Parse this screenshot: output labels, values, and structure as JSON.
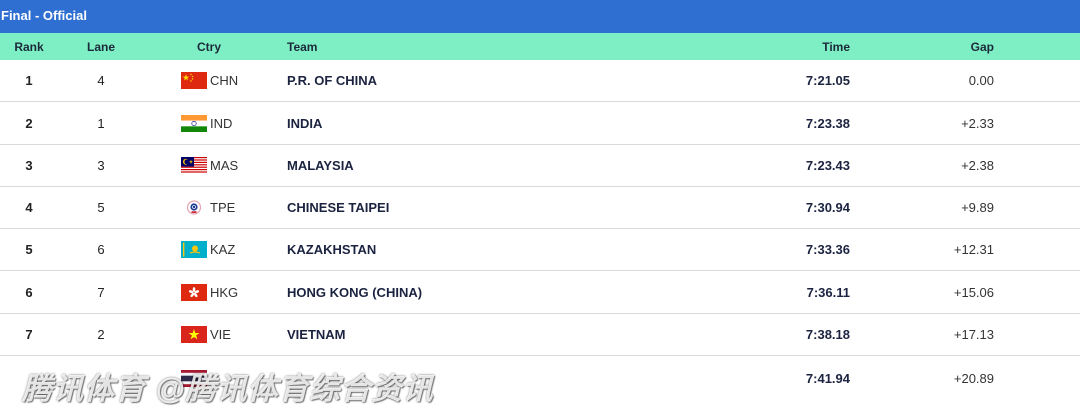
{
  "title": "Final - Official",
  "headers": {
    "rank": "Rank",
    "lane": "Lane",
    "ctry": "Ctry",
    "team": "Team",
    "time": "Time",
    "gap": "Gap"
  },
  "rows": [
    {
      "rank": "1",
      "lane": "4",
      "code": "CHN",
      "team": "P.R. OF CHINA",
      "time": "7:21.05",
      "gap": "0.00"
    },
    {
      "rank": "2",
      "lane": "1",
      "code": "IND",
      "team": "INDIA",
      "time": "7:23.38",
      "gap": "+2.33"
    },
    {
      "rank": "3",
      "lane": "3",
      "code": "MAS",
      "team": "MALAYSIA",
      "time": "7:23.43",
      "gap": "+2.38"
    },
    {
      "rank": "4",
      "lane": "5",
      "code": "TPE",
      "team": "CHINESE TAIPEI",
      "time": "7:30.94",
      "gap": "+9.89"
    },
    {
      "rank": "5",
      "lane": "6",
      "code": "KAZ",
      "team": "KAZAKHSTAN",
      "time": "7:33.36",
      "gap": "+12.31"
    },
    {
      "rank": "6",
      "lane": "7",
      "code": "HKG",
      "team": "HONG KONG (CHINA)",
      "time": "7:36.11",
      "gap": "+15.06"
    },
    {
      "rank": "7",
      "lane": "2",
      "code": "VIE",
      "team": "VIETNAM",
      "time": "7:38.18",
      "gap": "+17.13"
    },
    {
      "rank": "",
      "lane": "",
      "code": "",
      "team": "",
      "time": "7:41.94",
      "gap": "+20.89"
    }
  ],
  "watermark": "腾讯体育 @腾讯体育综合资讯",
  "colors": {
    "title_bar": "#2e6fd1",
    "header_row": "#7eeec4"
  }
}
